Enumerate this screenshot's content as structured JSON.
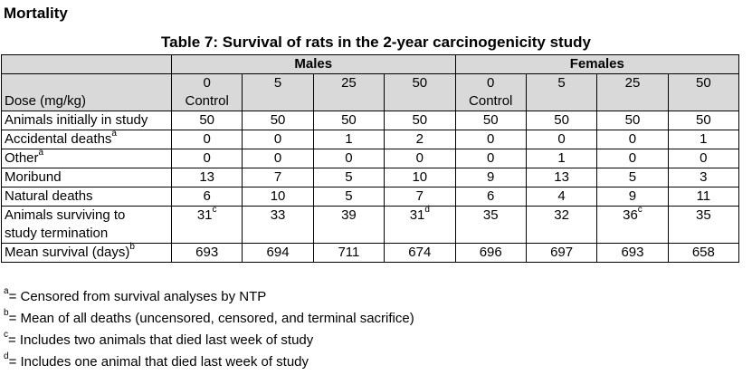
{
  "section_heading": "Mortality",
  "table_title": "Table 7: Survival of rats in the 2-year carcinogenicity study",
  "sex_headers": [
    "Males",
    "Females"
  ],
  "dose_label": "Dose (mg/kg)",
  "doses": [
    {
      "value": "0",
      "sub": "Control"
    },
    {
      "value": "5",
      "sub": ""
    },
    {
      "value": "25",
      "sub": ""
    },
    {
      "value": "50",
      "sub": ""
    },
    {
      "value": "0",
      "sub": "Control"
    },
    {
      "value": "5",
      "sub": ""
    },
    {
      "value": "25",
      "sub": ""
    },
    {
      "value": "50",
      "sub": ""
    }
  ],
  "rows": [
    {
      "label": "Animals initially in study",
      "sup": "",
      "label2": "",
      "cells": [
        {
          "v": "50",
          "s": ""
        },
        {
          "v": "50",
          "s": ""
        },
        {
          "v": "50",
          "s": ""
        },
        {
          "v": "50",
          "s": ""
        },
        {
          "v": "50",
          "s": ""
        },
        {
          "v": "50",
          "s": ""
        },
        {
          "v": "50",
          "s": ""
        },
        {
          "v": "50",
          "s": ""
        }
      ]
    },
    {
      "label": "Accidental deaths",
      "sup": "a",
      "label2": "",
      "cells": [
        {
          "v": "0",
          "s": ""
        },
        {
          "v": "0",
          "s": ""
        },
        {
          "v": "1",
          "s": ""
        },
        {
          "v": "2",
          "s": ""
        },
        {
          "v": "0",
          "s": ""
        },
        {
          "v": "0",
          "s": ""
        },
        {
          "v": "0",
          "s": ""
        },
        {
          "v": "1",
          "s": ""
        }
      ]
    },
    {
      "label": "Other",
      "sup": "a",
      "label2": "",
      "cells": [
        {
          "v": "0",
          "s": ""
        },
        {
          "v": "0",
          "s": ""
        },
        {
          "v": "0",
          "s": ""
        },
        {
          "v": "0",
          "s": ""
        },
        {
          "v": "0",
          "s": ""
        },
        {
          "v": "1",
          "s": ""
        },
        {
          "v": "0",
          "s": ""
        },
        {
          "v": "0",
          "s": ""
        }
      ]
    },
    {
      "label": "Moribund",
      "sup": "",
      "label2": "",
      "cells": [
        {
          "v": "13",
          "s": ""
        },
        {
          "v": "7",
          "s": ""
        },
        {
          "v": "5",
          "s": ""
        },
        {
          "v": "10",
          "s": ""
        },
        {
          "v": "9",
          "s": ""
        },
        {
          "v": "13",
          "s": ""
        },
        {
          "v": "5",
          "s": ""
        },
        {
          "v": "3",
          "s": ""
        }
      ]
    },
    {
      "label": "Natural deaths",
      "sup": "",
      "label2": "",
      "cells": [
        {
          "v": "6",
          "s": ""
        },
        {
          "v": "10",
          "s": ""
        },
        {
          "v": "5",
          "s": ""
        },
        {
          "v": "7",
          "s": ""
        },
        {
          "v": "6",
          "s": ""
        },
        {
          "v": "4",
          "s": ""
        },
        {
          "v": "9",
          "s": ""
        },
        {
          "v": "11",
          "s": ""
        }
      ]
    },
    {
      "label": "Animals surviving to",
      "sup": "",
      "label2": "study termination",
      "cells": [
        {
          "v": "31",
          "s": "c"
        },
        {
          "v": "33",
          "s": ""
        },
        {
          "v": "39",
          "s": ""
        },
        {
          "v": "31",
          "s": "d"
        },
        {
          "v": "35",
          "s": ""
        },
        {
          "v": "32",
          "s": ""
        },
        {
          "v": "36",
          "s": "c"
        },
        {
          "v": "35",
          "s": ""
        }
      ]
    },
    {
      "label": "Mean survival (days)",
      "sup": "b",
      "label2": "",
      "cells": [
        {
          "v": "693",
          "s": ""
        },
        {
          "v": "694",
          "s": ""
        },
        {
          "v": "711",
          "s": ""
        },
        {
          "v": "674",
          "s": ""
        },
        {
          "v": "696",
          "s": ""
        },
        {
          "v": "697",
          "s": ""
        },
        {
          "v": "693",
          "s": ""
        },
        {
          "v": "658",
          "s": ""
        }
      ]
    }
  ],
  "footnotes": [
    {
      "mark": "a",
      "text": "= Censored from survival analyses by NTP"
    },
    {
      "mark": "b",
      "text": "= Mean of all deaths (uncensored, censored, and terminal sacrifice)"
    },
    {
      "mark": "c",
      "text": "= Includes two animals that died last week of study"
    },
    {
      "mark": "d",
      "text": "= Includes one animal that died last week of study"
    }
  ]
}
